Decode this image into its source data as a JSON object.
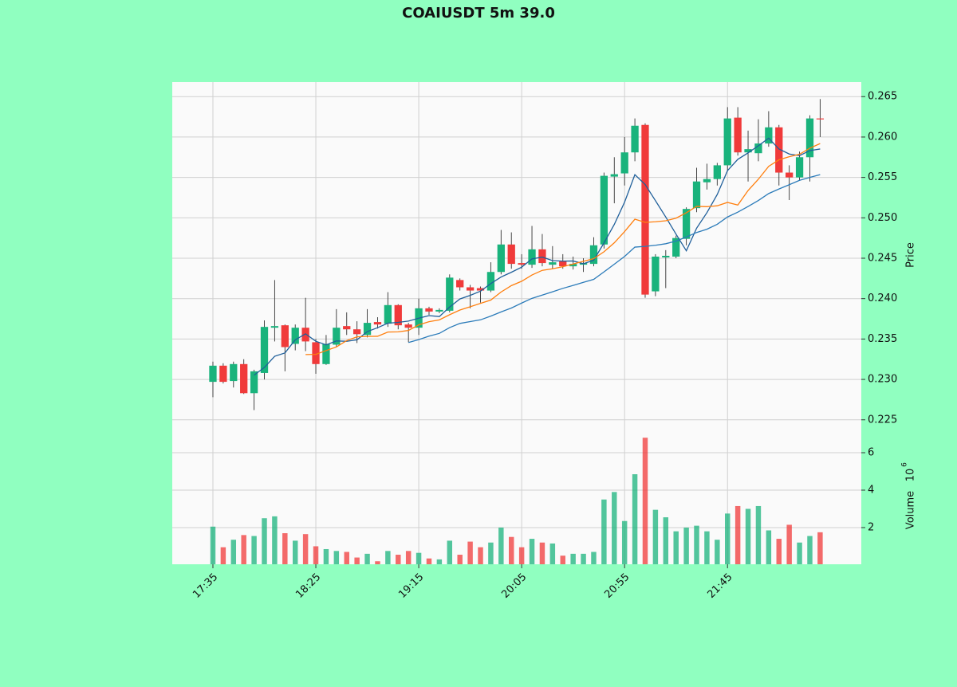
{
  "chart_data": {
    "type": "candlestick",
    "title": "COAIUSDT 5m 39.0",
    "ylabel": "Price",
    "volume_label": "Volume",
    "volume_unit": "10",
    "volume_unit_exponent": "6",
    "categories": [
      "17:35",
      null,
      null,
      null,
      null,
      null,
      null,
      null,
      null,
      null,
      "18:25",
      null,
      null,
      null,
      null,
      null,
      null,
      null,
      null,
      null,
      "19:15",
      null,
      null,
      null,
      null,
      null,
      null,
      null,
      null,
      null,
      "20:05",
      null,
      null,
      null,
      null,
      null,
      null,
      null,
      null,
      null,
      "20:55",
      null,
      null,
      null,
      null,
      null,
      null,
      null,
      null,
      null,
      "21:45",
      null,
      null,
      null,
      null,
      null,
      null,
      null,
      null,
      null
    ],
    "open": [
      0.2297,
      0.2317,
      0.2298,
      0.2319,
      0.2283,
      0.2308,
      0.2364,
      0.2367,
      0.2344,
      0.2364,
      0.2346,
      0.2319,
      0.2343,
      0.2366,
      0.2362,
      0.2355,
      0.2371,
      0.2369,
      0.2392,
      0.2368,
      0.2364,
      0.2388,
      0.2384,
      0.2385,
      0.2423,
      0.2414,
      0.2413,
      0.241,
      0.2433,
      0.2467,
      0.2444,
      0.2442,
      0.2461,
      0.2442,
      0.2446,
      0.244,
      0.2442,
      0.2443,
      0.2467,
      0.2551,
      0.2555,
      0.2581,
      0.2615,
      0.2409,
      0.2451,
      0.2452,
      0.2474,
      0.2512,
      0.2544,
      0.2548,
      0.2565,
      0.2624,
      0.2581,
      0.258,
      0.2592,
      0.2612,
      0.2556,
      0.255,
      0.2575,
      0.2623
    ],
    "high": [
      0.2322,
      0.232,
      0.2322,
      0.2325,
      0.2312,
      0.2373,
      0.2423,
      0.2368,
      0.2368,
      0.2401,
      0.235,
      0.2355,
      0.2387,
      0.2383,
      0.2372,
      0.2387,
      0.2377,
      0.2408,
      0.2393,
      0.237,
      0.24,
      0.239,
      0.2388,
      0.243,
      0.2425,
      0.2417,
      0.2415,
      0.2445,
      0.2485,
      0.2482,
      0.2455,
      0.249,
      0.248,
      0.2465,
      0.2455,
      0.2452,
      0.245,
      0.2476,
      0.2556,
      0.2575,
      0.26,
      0.2623,
      0.2617,
      0.2455,
      0.246,
      0.2478,
      0.2513,
      0.2562,
      0.2567,
      0.2568,
      0.2637,
      0.2637,
      0.2608,
      0.2622,
      0.2632,
      0.2615,
      0.2565,
      0.2582,
      0.2627,
      0.2647
    ],
    "low": [
      0.2278,
      0.2295,
      0.229,
      0.2282,
      0.2262,
      0.23,
      0.2347,
      0.231,
      0.2336,
      0.2335,
      0.2307,
      0.2318,
      0.234,
      0.2355,
      0.2345,
      0.2352,
      0.2363,
      0.2365,
      0.2362,
      0.2346,
      0.2355,
      0.238,
      0.2382,
      0.2383,
      0.241,
      0.2388,
      0.2395,
      0.2408,
      0.243,
      0.2437,
      0.2437,
      0.2438,
      0.244,
      0.2437,
      0.2437,
      0.2436,
      0.2433,
      0.244,
      0.2462,
      0.2518,
      0.254,
      0.257,
      0.2401,
      0.2403,
      0.2413,
      0.245,
      0.2466,
      0.2507,
      0.2535,
      0.254,
      0.2558,
      0.2577,
      0.2545,
      0.257,
      0.2588,
      0.254,
      0.2522,
      0.2546,
      0.2545,
      0.26
    ],
    "close": [
      0.2317,
      0.2297,
      0.2319,
      0.2283,
      0.231,
      0.2365,
      0.2366,
      0.234,
      0.2364,
      0.2347,
      0.2319,
      0.2344,
      0.2364,
      0.2362,
      0.2356,
      0.237,
      0.2368,
      0.2392,
      0.2367,
      0.2364,
      0.2388,
      0.2384,
      0.2386,
      0.2426,
      0.2414,
      0.241,
      0.241,
      0.2433,
      0.2467,
      0.2443,
      0.2442,
      0.2461,
      0.2444,
      0.2445,
      0.244,
      0.2443,
      0.2444,
      0.2466,
      0.2552,
      0.2554,
      0.2581,
      0.2614,
      0.2405,
      0.2452,
      0.2453,
      0.2475,
      0.2511,
      0.2545,
      0.2548,
      0.2565,
      0.2623,
      0.2581,
      0.2585,
      0.2592,
      0.2612,
      0.2556,
      0.255,
      0.2575,
      0.2623,
      0.2622
    ],
    "volume": [
      2.05,
      0.95,
      1.35,
      1.6,
      1.55,
      2.5,
      2.6,
      1.7,
      1.3,
      1.65,
      1.0,
      0.85,
      0.75,
      0.7,
      0.4,
      0.6,
      0.2,
      0.75,
      0.55,
      0.75,
      0.65,
      0.35,
      0.3,
      1.3,
      0.55,
      1.25,
      0.95,
      1.2,
      2.0,
      1.5,
      0.95,
      1.4,
      1.2,
      1.15,
      0.5,
      0.6,
      0.6,
      0.7,
      3.5,
      3.9,
      2.35,
      4.85,
      6.8,
      2.95,
      2.55,
      1.8,
      2.0,
      2.1,
      1.8,
      1.35,
      2.75,
      3.15,
      3.0,
      3.15,
      1.85,
      1.4,
      2.15,
      1.2,
      1.55,
      1.75
    ],
    "moving_averages": [
      {
        "color": "#1f5f9a",
        "values": [
          null,
          null,
          null,
          null,
          0.23052,
          0.23148,
          0.23286,
          0.23328,
          0.2349,
          0.23564,
          0.23472,
          0.23428,
          0.23476,
          0.23472,
          0.2349,
          0.23592,
          0.2364,
          0.23696,
          0.23706,
          0.23722,
          0.23758,
          0.2379,
          0.23778,
          0.23896,
          0.23996,
          0.2404,
          0.24092,
          0.24186,
          0.24268,
          0.24326,
          0.2439,
          0.24492,
          0.24514,
          0.2447,
          0.24464,
          0.24466,
          0.24432,
          0.24476,
          0.2469,
          0.24918,
          0.25194,
          0.25534,
          0.25412,
          0.25212,
          0.2501,
          0.24798,
          0.24592,
          0.24872,
          0.25064,
          0.25288,
          0.25584,
          0.25724,
          0.25804,
          0.25892,
          0.25986,
          0.25852,
          0.2579,
          0.2577,
          0.25832,
          0.25852
        ]
      },
      {
        "color": "#ff7f0e",
        "values": [
          null,
          null,
          null,
          null,
          null,
          null,
          null,
          null,
          null,
          0.23308,
          0.2331,
          0.23357,
          0.23402,
          0.23481,
          0.23527,
          0.23532,
          0.23534,
          0.23586,
          0.23589,
          0.23606,
          0.23675,
          0.23715,
          0.23737,
          0.23801,
          0.23859,
          0.23899,
          0.23941,
          0.23982,
          0.24082,
          0.24161,
          0.24215,
          0.24292,
          0.2435,
          0.24369,
          0.24395,
          0.24428,
          0.24462,
          0.24495,
          0.2458,
          0.24691,
          0.2483,
          0.24983,
          0.24944,
          0.24951,
          0.24964,
          0.24996,
          0.25063,
          0.25142,
          0.25138,
          0.25149,
          0.25191,
          0.25158,
          0.25338,
          0.25478,
          0.25637,
          0.25718,
          0.25757,
          0.25787,
          0.25862,
          0.25919
        ]
      },
      {
        "color": "#2b7bb9",
        "values": [
          null,
          null,
          null,
          null,
          null,
          null,
          null,
          null,
          null,
          null,
          null,
          null,
          null,
          null,
          null,
          null,
          null,
          null,
          null,
          0.23457,
          0.234925,
          0.23536,
          0.235695,
          0.23641,
          0.23693,
          0.237155,
          0.237375,
          0.23784,
          0.238355,
          0.238835,
          0.23945,
          0.240035,
          0.240435,
          0.24085,
          0.24127,
          0.241635,
          0.242015,
          0.242385,
          0.24331,
          0.24426,
          0.245225,
          0.246375,
          0.24647,
          0.2466,
          0.246795,
          0.24712,
          0.247625,
          0.248185,
          0.24859,
          0.2492,
          0.250105,
          0.250705,
          0.25141,
          0.252145,
          0.253005,
          0.25357,
          0.2541,
          0.254645,
          0.255,
          0.25534
        ]
      }
    ],
    "up_color": "#19b37c",
    "down_color": "#f03a3a",
    "ylim": [
      0.2232,
      0.2668
    ],
    "yticks": [
      0.225,
      {
        "value": 0.23,
        "label": "0.230"
      },
      0.235,
      {
        "value": 0.24,
        "label": "0.240"
      },
      0.245,
      {
        "value": 0.25,
        "label": "0.250"
      },
      0.255,
      {
        "value": 0.26,
        "label": "0.260"
      },
      0.265
    ],
    "volume_ylim": [
      0.04,
      6.98
    ],
    "volume_yticks": [
      2,
      4,
      6
    ],
    "grid": true
  }
}
